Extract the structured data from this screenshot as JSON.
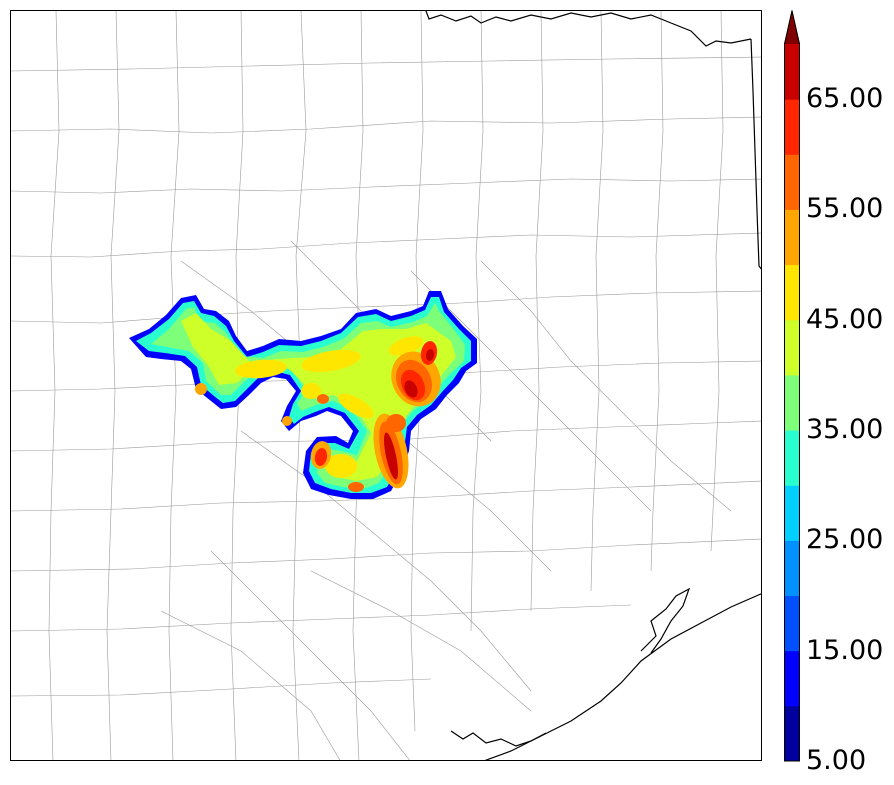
{
  "colorbar": {
    "ticks": [
      "5.00",
      "15.00",
      "25.00",
      "35.00",
      "45.00",
      "55.00",
      "65.00"
    ],
    "levels": [
      5,
      10,
      15,
      20,
      25,
      30,
      35,
      40,
      45,
      50,
      55,
      60,
      65,
      70
    ],
    "colors": [
      "#00009f",
      "#0000ff",
      "#0050ff",
      "#0090ff",
      "#00d0ff",
      "#29ffce",
      "#7dff7a",
      "#ceff29",
      "#ffe600",
      "#ffa600",
      "#ff6600",
      "#ff2600",
      "#c90000",
      "#7f0000"
    ],
    "extend": "max"
  },
  "map": {
    "boundary_color": "#000000",
    "county_color": "#9a9a9a",
    "region": "Central / Southeast Texas"
  }
}
